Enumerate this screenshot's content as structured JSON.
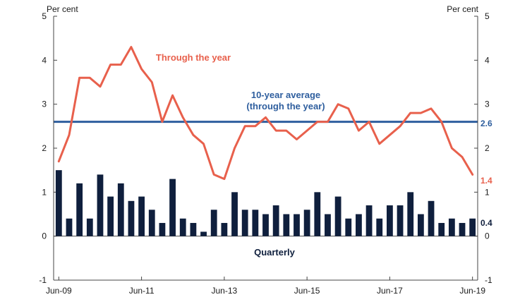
{
  "chart_data": {
    "type": "bar+line",
    "ylabel_left": "Per cent",
    "ylabel_right": "Per cent",
    "ylim": [
      -1,
      5
    ],
    "yticks": [
      "-1",
      "0",
      "1",
      "2",
      "3",
      "4",
      "5"
    ],
    "xticks": [
      {
        "label": "Jun-09",
        "index": 0
      },
      {
        "label": "Jun-11",
        "index": 8
      },
      {
        "label": "Jun-13",
        "index": 16
      },
      {
        "label": "Jun-15",
        "index": 24
      },
      {
        "label": "Jun-17",
        "index": 32
      },
      {
        "label": "Jun-19",
        "index": 40
      }
    ],
    "quarterly": {
      "name": "Quarterly",
      "color": "#0f1f3d",
      "values": [
        1.5,
        0.4,
        1.2,
        0.4,
        1.4,
        0.9,
        1.2,
        0.8,
        0.9,
        0.6,
        0.3,
        1.3,
        0.4,
        0.3,
        0.1,
        0.6,
        0.3,
        1.0,
        0.6,
        0.6,
        0.5,
        0.7,
        0.5,
        0.5,
        0.6,
        1.0,
        0.5,
        0.9,
        0.4,
        0.5,
        0.7,
        0.4,
        0.7,
        0.7,
        1.0,
        0.5,
        0.8,
        0.3,
        0.4,
        0.3,
        0.4
      ]
    },
    "through_the_year": {
      "name": "Through the year",
      "color": "#e8604c",
      "values": [
        1.7,
        2.3,
        3.6,
        3.6,
        3.4,
        3.9,
        3.9,
        4.3,
        3.8,
        3.5,
        2.6,
        3.2,
        2.7,
        2.3,
        2.1,
        1.4,
        1.3,
        2.0,
        2.5,
        2.5,
        2.7,
        2.4,
        2.4,
        2.2,
        2.4,
        2.6,
        2.6,
        3.0,
        2.9,
        2.4,
        2.6,
        2.1,
        2.3,
        2.5,
        2.8,
        2.8,
        2.9,
        2.6,
        2.0,
        1.8,
        1.4
      ]
    },
    "average": {
      "name": "10-year average",
      "name_line2": "(through the year)",
      "color": "#2e5e9e",
      "value": 2.6
    },
    "end_labels": {
      "average": "2.6",
      "through_the_year": "1.4",
      "quarterly": "0.4"
    },
    "grid": false
  }
}
